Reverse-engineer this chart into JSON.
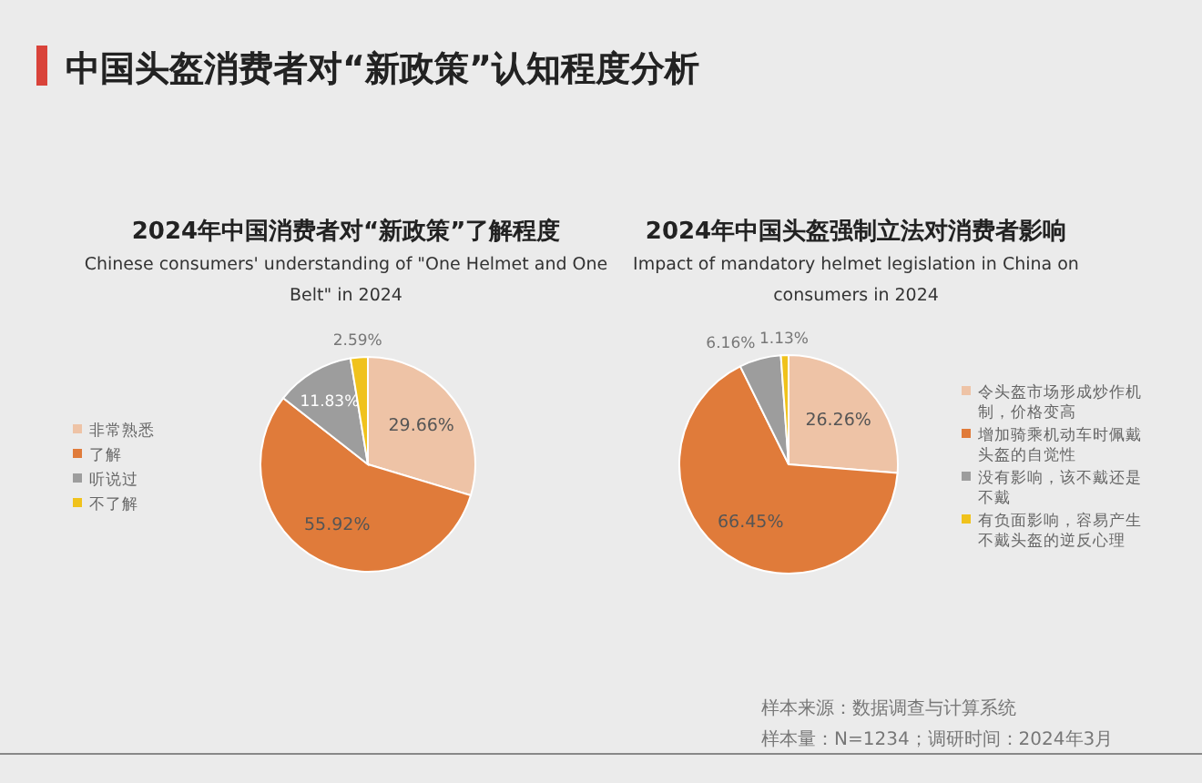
{
  "chart_data": [
    {
      "type": "other",
      "title": "中国头盔消费者对“新政策”认知程度分析",
      "annotations": [
        "样本来源：数据调查与计算系统",
        "样本量：N=1234；调研时间：2024年3月"
      ]
    },
    {
      "type": "pie",
      "title": "2024年中国消费者对“新政策”了解程度",
      "subtitle": "Chinese consumers' understanding of \"One Helmet and One Belt\" in 2024",
      "categories": [
        "非常熟悉",
        "了解",
        "听说过",
        "不了解"
      ],
      "values": [
        29.66,
        55.92,
        11.83,
        2.59
      ],
      "value_labels": [
        "29.66%",
        "55.92%",
        "11.83%",
        "2.59%"
      ],
      "colors": [
        "#eec3a6",
        "#e07b3a",
        "#9d9d9d",
        "#f0c21c"
      ],
      "legend": "left"
    },
    {
      "type": "pie",
      "title": "2024年中国头盔强制立法对消费者影响",
      "subtitle": "Impact of mandatory helmet legislation in China on consumers in 2024",
      "categories": [
        "令头盔市场形成炒作机制，价格变高",
        "增加骑乘机动车时佩戴头盔的自觉性",
        "没有影响，该不戴还是不戴",
        "有负面影响，容易产生不戴头盔的逆反心理"
      ],
      "values": [
        26.26,
        66.45,
        6.16,
        1.13
      ],
      "value_labels": [
        "26.26%",
        "66.45%",
        "6.16%",
        "1.13%"
      ],
      "colors": [
        "#eec3a6",
        "#e07b3a",
        "#9d9d9d",
        "#f0c21c"
      ],
      "legend": "right"
    }
  ]
}
